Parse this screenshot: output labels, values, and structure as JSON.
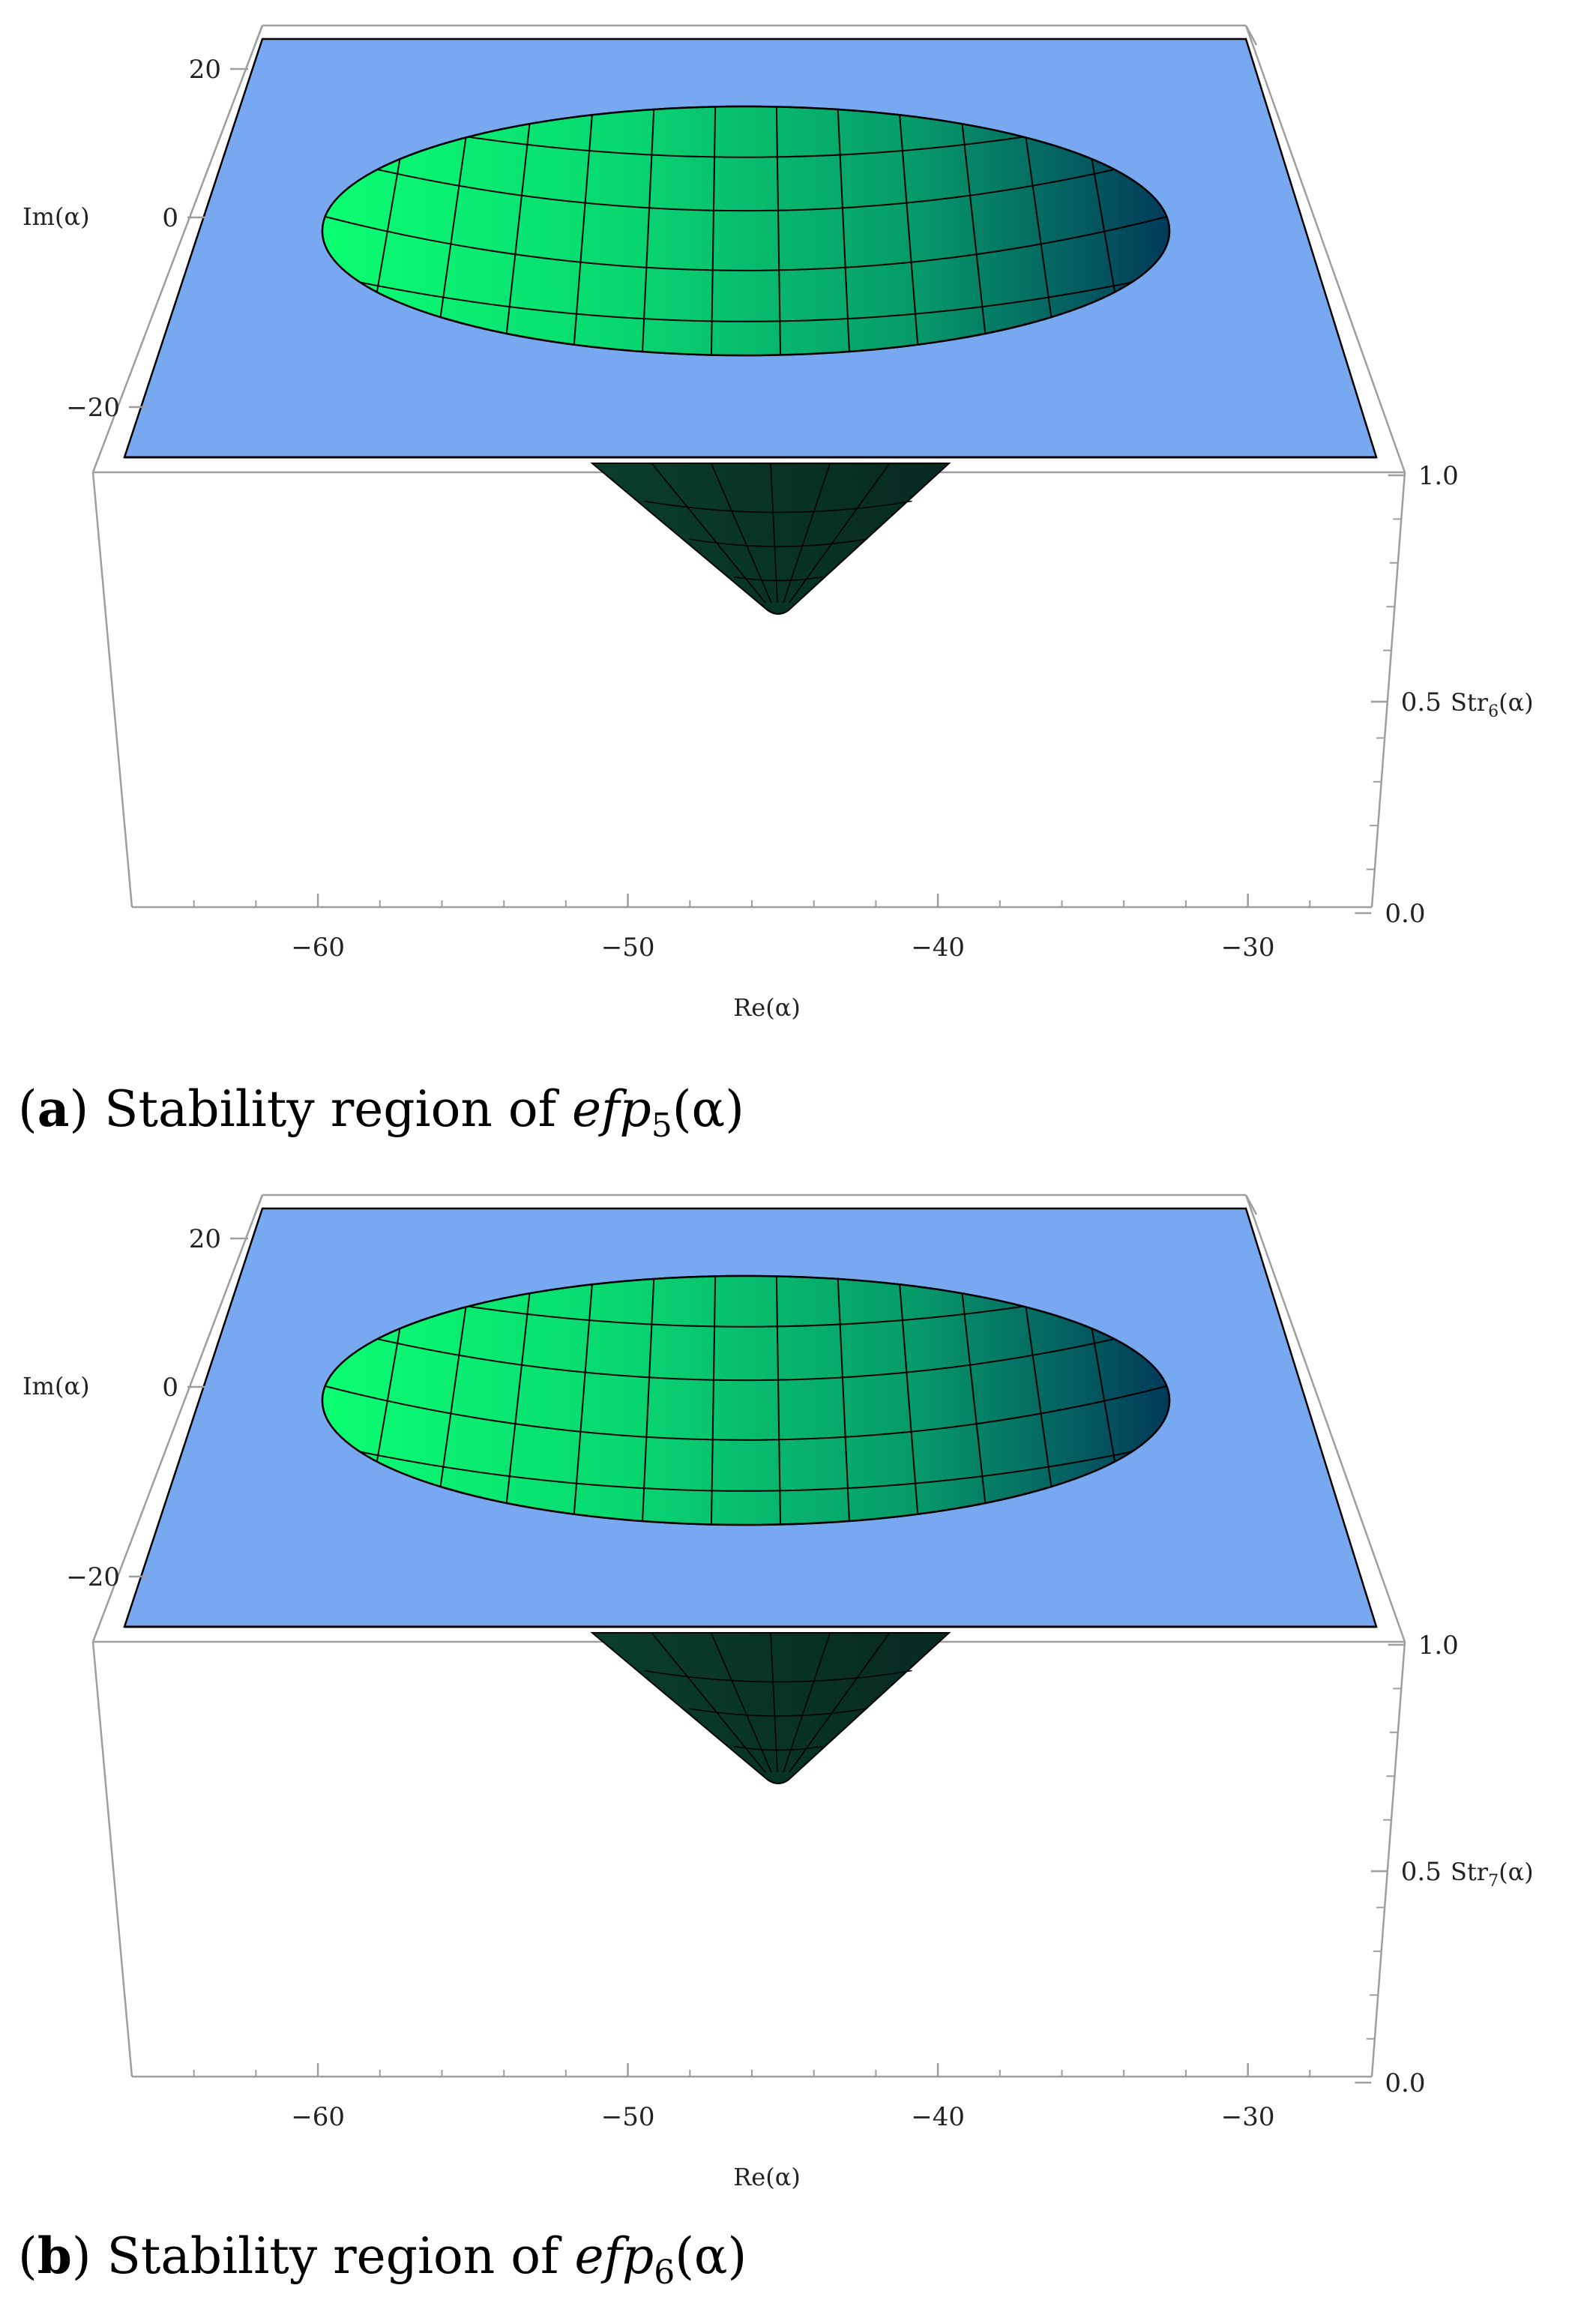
{
  "figures": [
    {
      "caption_letter": "a",
      "caption_text": "Stability region of",
      "caption_func": "efp",
      "caption_sub": "5",
      "caption_arg": "(α)"
    },
    {
      "caption_letter": "b",
      "caption_text": "Stability region of",
      "caption_func": "efp",
      "caption_sub": "6",
      "caption_arg": "(α)"
    }
  ],
  "colors": {
    "plane": "#78A8F0",
    "surface_light": "#0BFF72",
    "surface_mid": "#069A6A",
    "surface_dark": "#033A5A",
    "cone": "#0B3529",
    "axes": "#9E9E9E",
    "mesh": "#000000"
  },
  "chart_data": [
    {
      "type": "surface3d",
      "xlabel": "Re(α)",
      "ylabel": "Im(α)",
      "zlabel_base": "Str",
      "zlabel_sub": "6",
      "zlabel_arg": "(α)",
      "x_ticks": [
        -60,
        -50,
        -40,
        -30
      ],
      "y_ticks": [
        20,
        0,
        -20
      ],
      "z_ticks": [
        "1.0",
        "0.5",
        "0.0"
      ],
      "x_tick_labels": [
        "−60",
        "−50",
        "−40",
        "−30"
      ],
      "y_tick_labels": [
        "20",
        "0",
        "−20"
      ],
      "xlim": [
        -66,
        -26
      ],
      "ylim": [
        -25,
        25
      ],
      "zlim": [
        0,
        1
      ],
      "stable_region_center": [
        -45.5,
        0
      ],
      "stable_region_radius": 14.5
    },
    {
      "type": "surface3d",
      "xlabel": "Re(α)",
      "ylabel": "Im(α)",
      "zlabel_base": "Str",
      "zlabel_sub": "7",
      "zlabel_arg": "(α)",
      "x_ticks": [
        -60,
        -50,
        -40,
        -30
      ],
      "y_ticks": [
        20,
        0,
        -20
      ],
      "z_ticks": [
        "1.0",
        "0.5",
        "0.0"
      ],
      "x_tick_labels": [
        "−60",
        "−50",
        "−40",
        "−30"
      ],
      "y_tick_labels": [
        "20",
        "0",
        "−20"
      ],
      "xlim": [
        -66,
        -26
      ],
      "ylim": [
        -25,
        25
      ],
      "zlim": [
        0,
        1
      ],
      "stable_region_center": [
        -45.5,
        0
      ],
      "stable_region_radius": 14.5
    }
  ]
}
